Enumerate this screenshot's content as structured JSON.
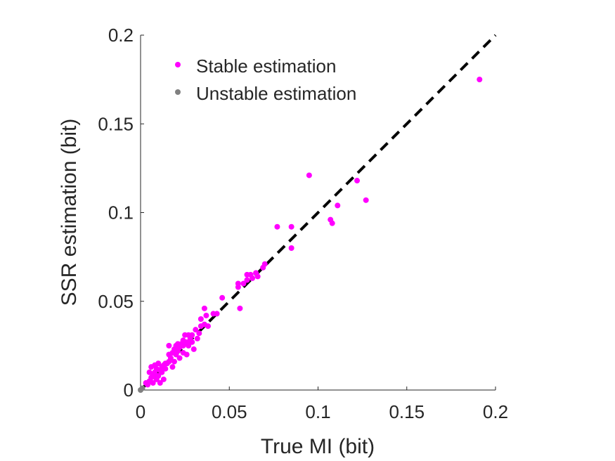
{
  "chart_data": {
    "type": "scatter",
    "xlabel": "True MI (bit)",
    "ylabel": "SSR estimation (bit)",
    "xlim": [
      0,
      0.2
    ],
    "ylim": [
      0,
      0.2
    ],
    "xticks": [
      0,
      0.05,
      0.1,
      0.15,
      0.2
    ],
    "xtick_labels": [
      "0",
      "0.05",
      "0.1",
      "0.15",
      "0.2"
    ],
    "yticks": [
      0,
      0.05,
      0.1,
      0.15,
      0.2
    ],
    "ytick_labels": [
      "0",
      "0.05",
      "0.1",
      "0.15",
      "0.2"
    ],
    "grid": false,
    "legend_position": "top-left",
    "reference_line": {
      "style": "dashed",
      "color": "#000000",
      "from": [
        0,
        0
      ],
      "to": [
        0.2,
        0.2
      ]
    },
    "series": [
      {
        "name": "Stable estimation",
        "color": "#ff00ff",
        "points": [
          [
            0.191,
            0.175
          ],
          [
            0.127,
            0.107
          ],
          [
            0.122,
            0.118
          ],
          [
            0.111,
            0.104
          ],
          [
            0.108,
            0.094
          ],
          [
            0.107,
            0.096
          ],
          [
            0.095,
            0.121
          ],
          [
            0.085,
            0.092
          ],
          [
            0.085,
            0.08
          ],
          [
            0.077,
            0.092
          ],
          [
            0.07,
            0.071
          ],
          [
            0.069,
            0.069
          ],
          [
            0.066,
            0.064
          ],
          [
            0.063,
            0.063
          ],
          [
            0.06,
            0.065
          ],
          [
            0.06,
            0.062
          ],
          [
            0.058,
            0.06
          ],
          [
            0.055,
            0.06
          ],
          [
            0.055,
            0.058
          ],
          [
            0.056,
            0.046
          ],
          [
            0.046,
            0.052
          ],
          [
            0.041,
            0.043
          ],
          [
            0.037,
            0.042
          ],
          [
            0.036,
            0.046
          ],
          [
            0.034,
            0.04
          ],
          [
            0.034,
            0.036
          ],
          [
            0.033,
            0.032
          ],
          [
            0.031,
            0.034
          ],
          [
            0.029,
            0.031
          ],
          [
            0.028,
            0.029
          ],
          [
            0.027,
            0.031
          ],
          [
            0.026,
            0.027
          ],
          [
            0.025,
            0.031
          ],
          [
            0.024,
            0.028
          ],
          [
            0.024,
            0.025
          ],
          [
            0.023,
            0.026
          ],
          [
            0.022,
            0.024
          ],
          [
            0.021,
            0.026
          ],
          [
            0.021,
            0.022
          ],
          [
            0.02,
            0.025
          ],
          [
            0.02,
            0.02
          ],
          [
            0.019,
            0.023
          ],
          [
            0.018,
            0.021
          ],
          [
            0.017,
            0.018
          ],
          [
            0.016,
            0.02
          ],
          [
            0.016,
            0.016
          ],
          [
            0.016,
            0.025
          ],
          [
            0.015,
            0.015
          ],
          [
            0.014,
            0.015
          ],
          [
            0.014,
            0.012
          ],
          [
            0.013,
            0.014
          ],
          [
            0.012,
            0.013
          ],
          [
            0.012,
            0.01
          ],
          [
            0.011,
            0.011
          ],
          [
            0.01,
            0.015
          ],
          [
            0.01,
            0.008
          ],
          [
            0.009,
            0.012
          ],
          [
            0.009,
            0.006
          ],
          [
            0.008,
            0.014
          ],
          [
            0.008,
            0.01
          ],
          [
            0.007,
            0.008
          ],
          [
            0.007,
            0.004
          ],
          [
            0.006,
            0.013
          ],
          [
            0.006,
            0.007
          ],
          [
            0.005,
            0.005
          ],
          [
            0.005,
            0.01
          ],
          [
            0.004,
            0.003
          ],
          [
            0.003,
            0.004
          ],
          [
            0.026,
            0.02
          ],
          [
            0.029,
            0.027
          ],
          [
            0.032,
            0.029
          ],
          [
            0.018,
            0.013
          ],
          [
            0.013,
            0.006
          ],
          [
            0.022,
            0.018
          ],
          [
            0.03,
            0.023
          ],
          [
            0.024,
            0.021
          ],
          [
            0.038,
            0.036
          ],
          [
            0.043,
            0.043
          ],
          [
            0.062,
            0.065
          ],
          [
            0.065,
            0.066
          ],
          [
            0.011,
            0.004
          ],
          [
            0.019,
            0.016
          ],
          [
            0.027,
            0.025
          ],
          [
            0.036,
            0.037
          ]
        ]
      },
      {
        "name": "Unstable estimation",
        "color": "#808080",
        "points": [
          [
            0.0,
            0.0
          ],
          [
            0.001,
            0.001
          ]
        ]
      }
    ]
  }
}
